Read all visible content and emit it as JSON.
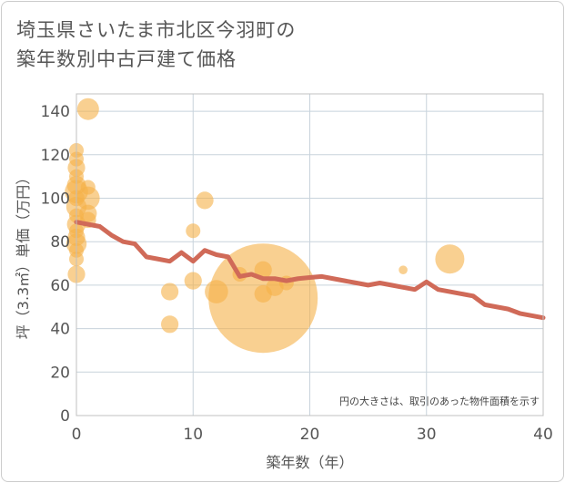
{
  "title": {
    "line1": "埼玉県さいたま市北区今羽町の",
    "line2": "築年数別中古戸建て価格"
  },
  "colors": {
    "bubble": "#f5b048",
    "line": "#d06a58",
    "grid": "#c8d3dc",
    "plot_border": "#c0c0c0"
  },
  "chart_data": {
    "type": "scatter",
    "xlabel": "築年数（年）",
    "ylabel": "坪（3.3㎡）単価（万円）",
    "xlim": [
      0,
      40
    ],
    "ylim": [
      0,
      148
    ],
    "xticks": [
      0,
      10,
      20,
      30,
      40
    ],
    "yticks": [
      0,
      20,
      40,
      60,
      80,
      100,
      120,
      140
    ],
    "grid": true,
    "note": "円の大きさは、取引のあった物件面積を示す",
    "bubbles": [
      {
        "x": 0,
        "y": 122,
        "s": 1.0
      },
      {
        "x": 0,
        "y": 118,
        "s": 1.0
      },
      {
        "x": 0,
        "y": 114,
        "s": 1.2
      },
      {
        "x": 0,
        "y": 110,
        "s": 1.0
      },
      {
        "x": 0,
        "y": 106,
        "s": 1.3
      },
      {
        "x": 0,
        "y": 103,
        "s": 1.6
      },
      {
        "x": 0,
        "y": 100,
        "s": 1.1
      },
      {
        "x": 0,
        "y": 96,
        "s": 1.4
      },
      {
        "x": 0,
        "y": 92,
        "s": 1.0
      },
      {
        "x": 0,
        "y": 88,
        "s": 1.3
      },
      {
        "x": 0,
        "y": 85,
        "s": 1.0
      },
      {
        "x": 0,
        "y": 82,
        "s": 1.2
      },
      {
        "x": 0,
        "y": 79,
        "s": 1.4
      },
      {
        "x": 0,
        "y": 76,
        "s": 1.0
      },
      {
        "x": 0,
        "y": 72,
        "s": 1.0
      },
      {
        "x": 0,
        "y": 65,
        "s": 1.2
      },
      {
        "x": 1,
        "y": 141,
        "s": 1.5
      },
      {
        "x": 1,
        "y": 105,
        "s": 1.0
      },
      {
        "x": 1,
        "y": 100,
        "s": 1.6
      },
      {
        "x": 1,
        "y": 93,
        "s": 1.2
      },
      {
        "x": 1,
        "y": 90,
        "s": 1.1
      },
      {
        "x": 8,
        "y": 57,
        "s": 1.2
      },
      {
        "x": 8,
        "y": 42,
        "s": 1.2
      },
      {
        "x": 10,
        "y": 85,
        "s": 1.0
      },
      {
        "x": 10,
        "y": 62,
        "s": 1.2
      },
      {
        "x": 11,
        "y": 99,
        "s": 1.2
      },
      {
        "x": 12,
        "y": 57,
        "s": 1.6
      },
      {
        "x": 14,
        "y": 65,
        "s": 1.0
      },
      {
        "x": 16,
        "y": 54,
        "s": 7.5
      },
      {
        "x": 16,
        "y": 67,
        "s": 1.2
      },
      {
        "x": 16,
        "y": 56,
        "s": 1.2
      },
      {
        "x": 17,
        "y": 59,
        "s": 1.2
      },
      {
        "x": 18,
        "y": 61,
        "s": 1.0
      },
      {
        "x": 28,
        "y": 67,
        "s": 0.6
      },
      {
        "x": 32,
        "y": 72,
        "s": 2.0
      }
    ],
    "series": [
      {
        "x": [
          0,
          1,
          2,
          3,
          4,
          5,
          6,
          7,
          8,
          9,
          10,
          11,
          12,
          13,
          14,
          15,
          16,
          17,
          18,
          19,
          20,
          21,
          22,
          23,
          24,
          25,
          26,
          27,
          28,
          29,
          30,
          31,
          32,
          33,
          34,
          35,
          36,
          37,
          38,
          39,
          40
        ],
        "values": [
          89,
          88,
          87,
          83,
          80,
          79,
          73,
          72,
          71,
          75,
          71,
          76,
          74,
          73,
          64,
          65,
          63,
          63,
          62,
          63,
          63.5,
          64,
          63,
          62,
          61,
          60,
          61,
          60,
          59,
          58,
          61.5,
          58,
          57,
          56,
          55,
          51,
          50,
          49,
          47,
          46,
          45
        ]
      }
    ]
  }
}
